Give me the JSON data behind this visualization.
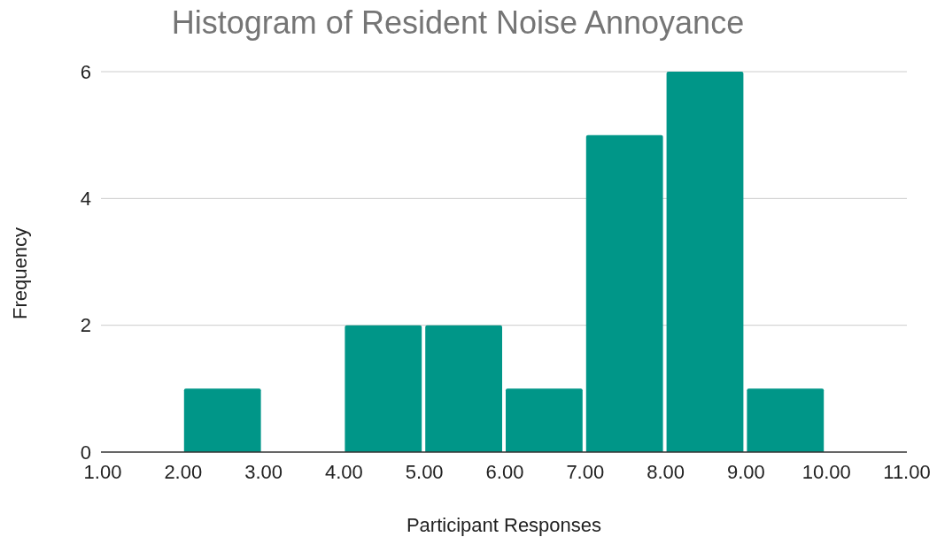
{
  "chart_data": {
    "type": "histogram",
    "title": "Histogram of Resident Noise Annoyance",
    "xlabel": "Participant Responses",
    "ylabel": "Frequency",
    "bins": [
      1,
      2,
      3,
      4,
      5,
      6,
      7,
      8,
      9,
      10,
      11
    ],
    "values": [
      0,
      1,
      0,
      2,
      2,
      1,
      5,
      6,
      1,
      0
    ],
    "color": "#009688",
    "xlim": [
      1,
      11
    ],
    "xticks": [
      {
        "value": 1,
        "label": "1.00"
      },
      {
        "value": 2,
        "label": "2.00"
      },
      {
        "value": 3,
        "label": "3.00"
      },
      {
        "value": 4,
        "label": "4.00"
      },
      {
        "value": 5,
        "label": "5.00"
      },
      {
        "value": 6,
        "label": "6.00"
      },
      {
        "value": 7,
        "label": "7.00"
      },
      {
        "value": 8,
        "label": "8.00"
      },
      {
        "value": 9,
        "label": "9.00"
      },
      {
        "value": 10,
        "label": "10.00"
      },
      {
        "value": 11,
        "label": "11.00"
      }
    ],
    "ylim": [
      0,
      6
    ],
    "yticks": [
      0,
      2,
      4,
      6
    ],
    "grid": "y"
  }
}
